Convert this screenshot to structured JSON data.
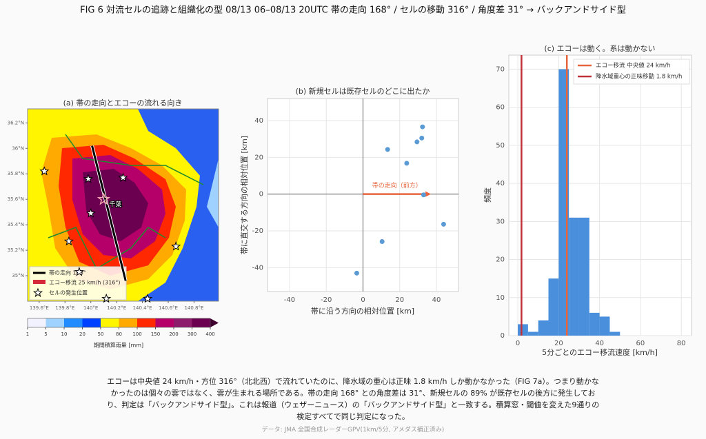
{
  "title": "FIG 6  対流セルの追跡と組織化の型  08/13 06–08/13 20UTC  帯の走向 168° / セルの移動 316° / 角度差 31° → バックアンドサイド型",
  "caption": "エコーは中央値 24 km/h・方位 316°（北北西）で流れていたのに、降水域の重心は正味 1.8 km/h しか動かなかった（FIG 7a）。つまり動かなかったのは個々の雲ではなく、雲が生まれる場所である。帯の走向 168° との角度差は 31°、新規セルの 89% が既存セルの後方に発生しており、判定は「バックアンドサイド型」。これは報道（ウェザーニュース）の「バックアンドサイド型」と一致する。積算窓・閾値を変えた9通りの検定すべてで同じ判定になった。",
  "source": "データ: JMA 全国合成レーダーGPV(1km/5分, アメダス補正済み)",
  "chart_data": [
    {
      "type": "map",
      "title": "(a) 帯の走向とエコーの流れる向き",
      "xlim": [
        139.51,
        140.99
      ],
      "ylim": [
        34.8,
        36.31
      ],
      "xticks": [
        {
          "value": 139.6,
          "label": "139.6°E"
        },
        {
          "value": 139.8,
          "label": "139.8°E"
        },
        {
          "value": 140,
          "label": "140°E"
        },
        {
          "value": 140.2,
          "label": "140.2°E"
        },
        {
          "value": 140.4,
          "label": "140.4°E"
        },
        {
          "value": 140.6,
          "label": "140.6°E"
        },
        {
          "value": 140.8,
          "label": "140.8°E"
        }
      ],
      "yticks": [
        {
          "value": 35,
          "label": "35°N"
        },
        {
          "value": 35.2,
          "label": "35.2°N"
        },
        {
          "value": 35.4,
          "label": "35.4°N"
        },
        {
          "value": 35.6,
          "label": "35.6°N"
        },
        {
          "value": 35.8,
          "label": "35.8°N"
        },
        {
          "value": 36,
          "label": "36°N"
        },
        {
          "value": 36.2,
          "label": "36.2°N"
        }
      ],
      "band": {
        "name": "帯の走向 168°",
        "lon": [
          140.01,
          140.27
        ],
        "lat": [
          36.02,
          34.96
        ],
        "color": "#000000"
      },
      "advection": {
        "name": "エコー移流 25 km/h (316°)",
        "color": "#d62839"
      },
      "stars": {
        "name": "セルの発生位置",
        "lon": [
          139.64,
          139.98,
          140.25,
          140.0,
          139.83,
          140.66,
          139.91,
          140.12,
          140.44
        ],
        "lat": [
          35.82,
          35.76,
          35.77,
          35.49,
          35.27,
          35.23,
          35.03,
          34.82,
          34.82
        ]
      },
      "city": {
        "name": "千葉",
        "lon": 140.1,
        "lat": 35.6,
        "color": "#f4a6b0"
      },
      "colorbar": {
        "label": "期間積算雨量 [mm]",
        "ticks": [
          1,
          5,
          10,
          20,
          50,
          80,
          100,
          150,
          200,
          300,
          400
        ],
        "colors": [
          "#f2f2ff",
          "#a0d2ff",
          "#218cff",
          "#0041ff",
          "#fff500",
          "#ffaa00",
          "#ff2800",
          "#b40068",
          "#8e1c6c",
          "#6b0050"
        ],
        "over_color": "#40002e"
      }
    },
    {
      "type": "scatter",
      "title": "(b) 新規セルは既存セルのどこに出たか",
      "xlabel": "帯に沿う方向の相対位置 [km]",
      "ylabel": "帯に直交する方向の相対位置 [km]",
      "x": [
        13.4,
        23.8,
        29.4,
        32,
        32.4,
        33,
        43.9,
        10.4,
        -3.4
      ],
      "y": [
        24.3,
        16.8,
        28.4,
        30.5,
        36.6,
        -0.4,
        -16.4,
        -25.8,
        -43
      ],
      "color": "#5b9bd5",
      "xlim": [
        -52,
        52
      ],
      "ylim": [
        -53,
        52
      ],
      "xticks": [
        -40,
        -20,
        0,
        20,
        40
      ],
      "yticks": [
        -40,
        -20,
        0,
        20,
        40
      ],
      "grid": true,
      "arrow": {
        "label": "帯の走向（前方）",
        "x": [
          0,
          37
        ],
        "y": [
          0,
          0
        ],
        "color": "#e8643c"
      }
    },
    {
      "type": "histogram",
      "title": "(c) エコーは動く。系は動かない",
      "xlabel": "5分ごとのエコー移流速度 [km/h]",
      "ylabel": "頻度",
      "bins": [
        0,
        5,
        10,
        15,
        20,
        25,
        30,
        35,
        40,
        45,
        50
      ],
      "counts": [
        3,
        1,
        4,
        15,
        70,
        31,
        31,
        6,
        5,
        1
      ],
      "color": "#4a8fdc",
      "xlim": [
        -4.4,
        85
      ],
      "ylim": [
        0,
        73.7
      ],
      "xticks": [
        0,
        20,
        40,
        60,
        80
      ],
      "yticks": [
        0,
        10,
        20,
        30,
        40,
        50,
        60,
        70
      ],
      "grid": true,
      "vlines": [
        {
          "name": "エコー移流 中央値 24 km/h",
          "value": 24,
          "color": "#e8643c"
        },
        {
          "name": "降水域重心の正味移動 1.8 km/h",
          "value": 1.8,
          "color": "#c0313c"
        }
      ]
    }
  ]
}
